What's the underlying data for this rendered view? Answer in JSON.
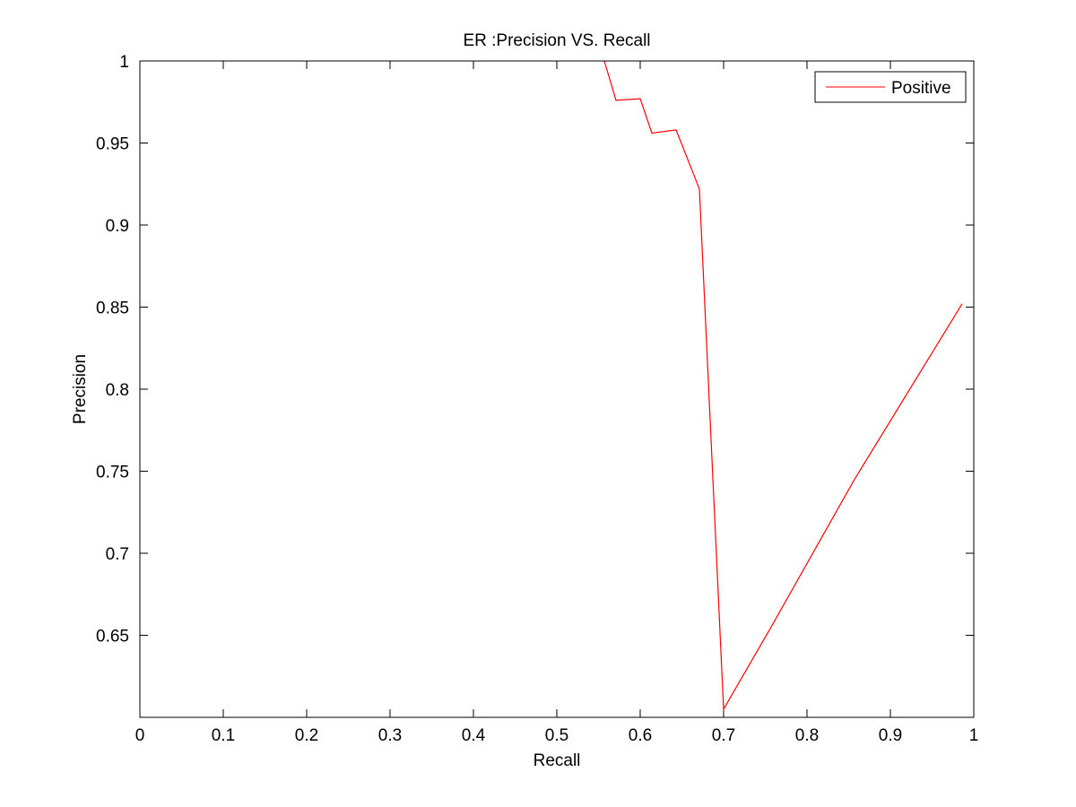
{
  "chart_data": {
    "type": "line",
    "title": "ER :Precision VS. Recall",
    "xlabel": "Recall",
    "ylabel": "Precision",
    "xlim": [
      0,
      1
    ],
    "ylim": [
      0.6,
      1
    ],
    "x_ticks": [
      0,
      0.1,
      0.2,
      0.3,
      0.4,
      0.5,
      0.6,
      0.7,
      0.8,
      0.9,
      1
    ],
    "x_tick_labels": [
      "0",
      "0.1",
      "0.2",
      "0.3",
      "0.4",
      "0.5",
      "0.6",
      "0.7",
      "0.8",
      "0.9",
      "1"
    ],
    "y_ticks": [
      0.65,
      0.7,
      0.75,
      0.8,
      0.85,
      0.9,
      0.95,
      1
    ],
    "y_tick_labels": [
      "0.65",
      "0.7",
      "0.75",
      "0.8",
      "0.85",
      "0.9",
      "0.95",
      "1"
    ],
    "grid": false,
    "legend": {
      "position": "top-right",
      "entries": [
        "Positive"
      ]
    },
    "series": [
      {
        "name": "Positive",
        "color": "#ff0000",
        "x": [
          0.557,
          0.571,
          0.6,
          0.614,
          0.643,
          0.671,
          0.7,
          0.757,
          0.857,
          0.986
        ],
        "y": [
          1.0,
          0.976,
          0.977,
          0.956,
          0.958,
          0.922,
          0.605,
          0.655,
          0.745,
          0.852
        ]
      }
    ]
  }
}
